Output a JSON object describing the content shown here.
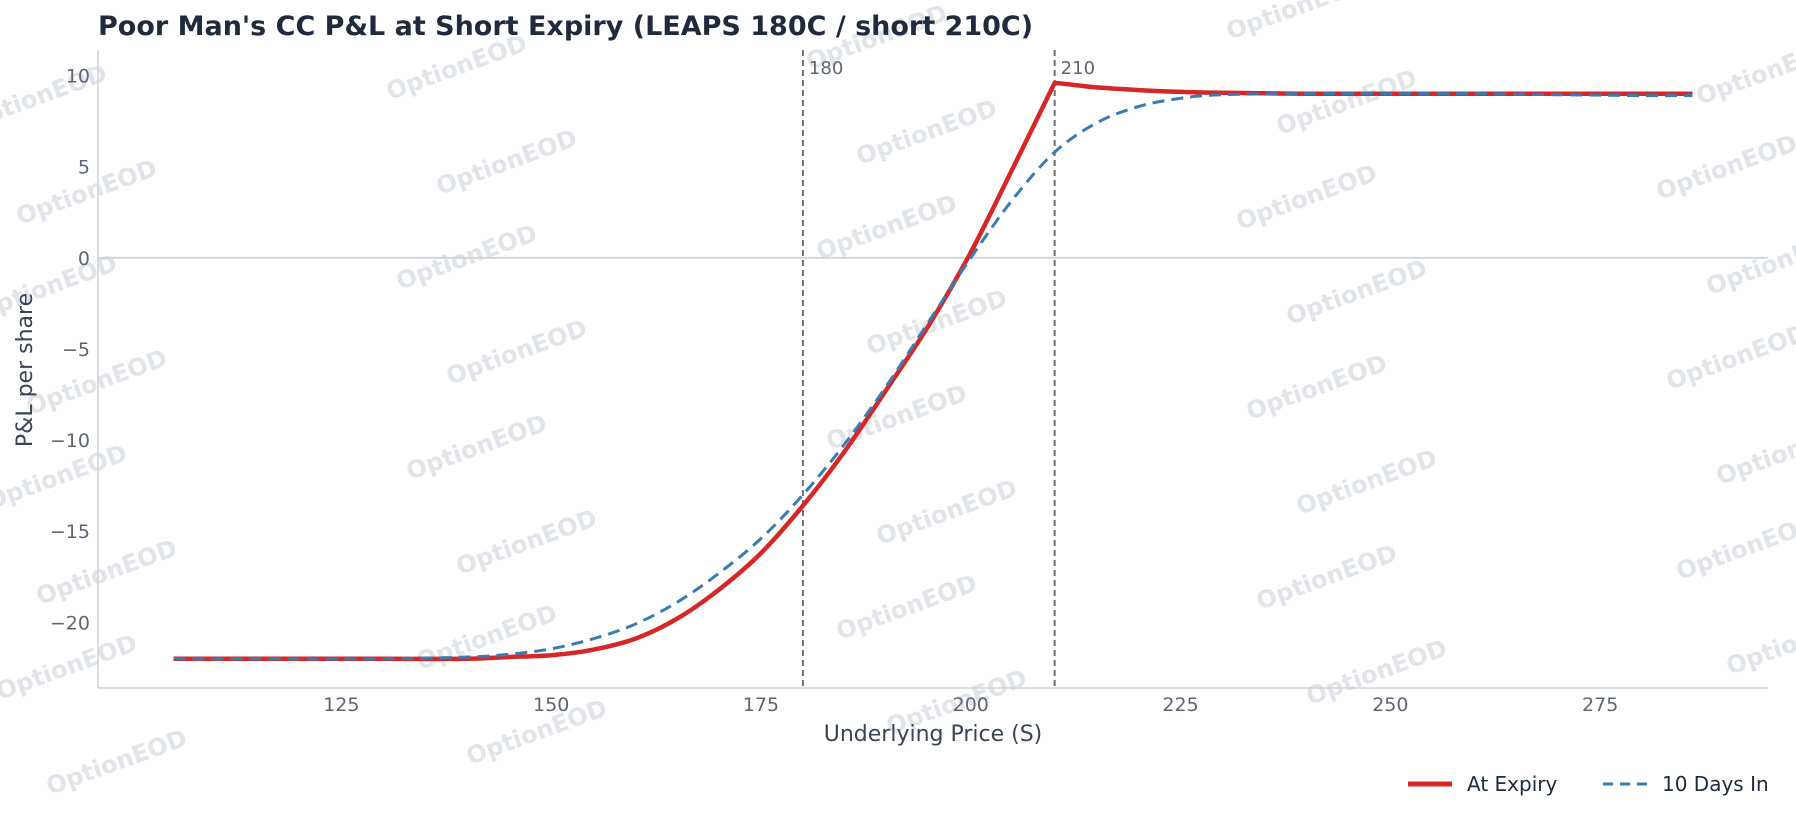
{
  "watermark_text": "OptionEOD",
  "chart_data": {
    "type": "line",
    "title": "Poor Man's CC P&L at Short Expiry (LEAPS 180C / short 210C)",
    "xlabel": "Underlying Price (S)",
    "ylabel": "P&L per share",
    "xlim": [
      96,
      295
    ],
    "ylim": [
      -23.6,
      11.4
    ],
    "xticks": [
      125,
      150,
      175,
      200,
      225,
      250,
      275
    ],
    "yticks": [
      -20,
      -15,
      -10,
      -5,
      0,
      5,
      10
    ],
    "ytick_labels": [
      "−20",
      "−15",
      "−10",
      "−5",
      "0",
      "5",
      "10"
    ],
    "grid": false,
    "zero_line": true,
    "legend": {
      "placement": "bottom-right"
    },
    "vlines": [
      {
        "x": 180,
        "label": "180"
      },
      {
        "x": 210,
        "label": "210"
      }
    ],
    "series": [
      {
        "name": "At Expiry",
        "color": "#d62728",
        "style": "solid",
        "x": [
          105,
          120,
          130,
          140,
          145,
          150,
          155,
          160,
          165,
          170,
          175,
          180,
          185,
          190,
          195,
          200,
          205,
          210,
          212,
          215,
          220,
          225,
          230,
          240,
          250,
          260,
          270,
          280,
          286
        ],
        "y": [
          -22.0,
          -22.0,
          -22.0,
          -22.0,
          -21.9,
          -21.8,
          -21.5,
          -20.9,
          -19.8,
          -18.2,
          -16.2,
          -13.6,
          -10.6,
          -7.2,
          -3.7,
          0.3,
          4.9,
          9.6,
          9.5,
          9.35,
          9.2,
          9.1,
          9.05,
          9.0,
          9.0,
          9.0,
          9.0,
          9.0,
          9.0
        ]
      },
      {
        "name": "10 Days In",
        "color": "#3b7bb1",
        "style": "dashed",
        "x": [
          105,
          120,
          130,
          140,
          145,
          150,
          155,
          160,
          165,
          170,
          175,
          180,
          185,
          190,
          195,
          200,
          205,
          210,
          215,
          220,
          225,
          230,
          240,
          250,
          260,
          270,
          280,
          286
        ],
        "y": [
          -22.0,
          -22.0,
          -22.0,
          -21.9,
          -21.75,
          -21.45,
          -20.9,
          -20.1,
          -18.9,
          -17.3,
          -15.4,
          -13.0,
          -10.2,
          -7.0,
          -3.5,
          0.0,
          3.2,
          5.8,
          7.4,
          8.3,
          8.75,
          8.95,
          9.0,
          9.0,
          9.0,
          8.95,
          8.9,
          8.9
        ]
      }
    ]
  }
}
